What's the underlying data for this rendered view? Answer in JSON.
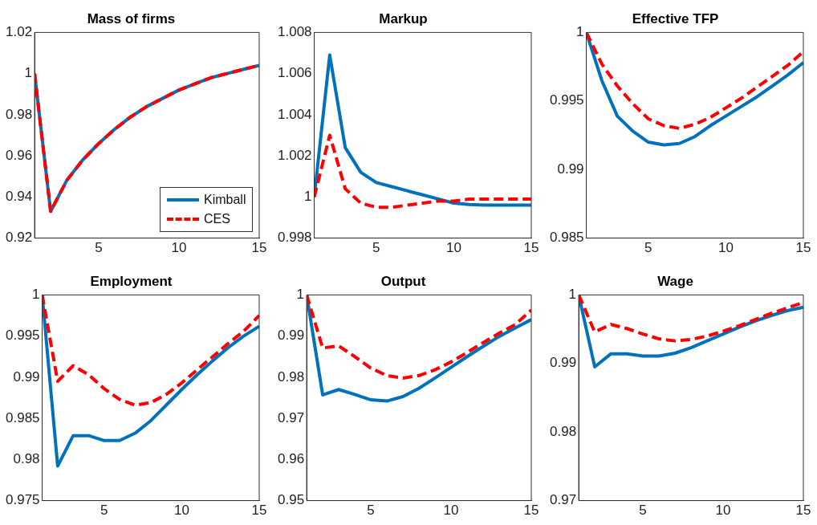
{
  "chart_data": [
    {
      "type": "line",
      "title": "Mass of firms",
      "x": [
        1,
        2,
        3,
        4,
        5,
        6,
        7,
        8,
        9,
        10,
        11,
        12,
        13,
        14,
        15
      ],
      "xlim": [
        1,
        15
      ],
      "xticks": [
        5,
        10,
        15
      ],
      "ylim": [
        0.92,
        1.02
      ],
      "yticks": [
        0.92,
        0.94,
        0.96,
        0.98,
        1,
        1.02
      ],
      "grid": false,
      "legend": "bottom right",
      "series": [
        {
          "name": "Kimball",
          "color": "#0072bd",
          "line_style": "solid",
          "values": [
            1,
            0.933,
            0.948,
            0.958,
            0.966,
            0.973,
            0.979,
            0.984,
            0.988,
            0.992,
            0.995,
            0.998,
            1.0,
            1.002,
            1.004
          ]
        },
        {
          "name": "CES",
          "color": "#ff0000",
          "line_style": "dashed",
          "values": [
            1,
            0.933,
            0.948,
            0.958,
            0.966,
            0.973,
            0.979,
            0.984,
            0.988,
            0.992,
            0.995,
            0.998,
            1.0,
            1.002,
            1.004
          ]
        }
      ]
    },
    {
      "type": "line",
      "title": "Markup",
      "x": [
        1,
        2,
        3,
        4,
        5,
        6,
        7,
        8,
        9,
        10,
        11,
        12,
        13,
        14,
        15
      ],
      "xlim": [
        1,
        15
      ],
      "xticks": [
        5,
        10,
        15
      ],
      "ylim": [
        0.998,
        1.008
      ],
      "yticks": [
        0.998,
        1,
        1.002,
        1.004,
        1.006,
        1.008
      ],
      "grid": false,
      "legend": false,
      "series": [
        {
          "color": "#0072bd",
          "line_style": "solid",
          "values": [
            1,
            1.0069,
            1.0024,
            1.0012,
            1.0007,
            1.0005,
            1.0003,
            1.0001,
            0.9999,
            0.9997,
            0.99963,
            0.9996,
            0.9996,
            0.9996,
            0.9996
          ]
        },
        {
          "color": "#ff0000",
          "line_style": "dashed",
          "values": [
            1,
            1.003,
            1.0004,
            0.9997,
            0.9995,
            0.9995,
            0.9996,
            0.9997,
            0.9998,
            0.9998,
            0.9999,
            0.9999,
            0.9999,
            0.9999,
            0.9999
          ]
        }
      ]
    },
    {
      "type": "line",
      "title": "Effective TFP",
      "x": [
        1,
        2,
        3,
        4,
        5,
        6,
        7,
        8,
        9,
        10,
        11,
        12,
        13,
        14,
        15
      ],
      "xlim": [
        1,
        15
      ],
      "xticks": [
        5,
        10,
        15
      ],
      "ylim": [
        0.985,
        1
      ],
      "yticks": [
        0.985,
        0.99,
        0.995,
        1
      ],
      "grid": false,
      "legend": false,
      "series": [
        {
          "color": "#0072bd",
          "line_style": "solid",
          "values": [
            1,
            0.9965,
            0.9939,
            0.9928,
            0.992,
            0.9918,
            0.9919,
            0.9924,
            0.9932,
            0.9939,
            0.9946,
            0.9953,
            0.9961,
            0.9969,
            0.9978
          ]
        },
        {
          "color": "#ff0000",
          "line_style": "dashed",
          "values": [
            1,
            0.9977,
            0.9961,
            0.9948,
            0.9937,
            0.9932,
            0.993,
            0.9933,
            0.9938,
            0.9945,
            0.9952,
            0.996,
            0.9968,
            0.9976,
            0.9986
          ]
        }
      ]
    },
    {
      "type": "line",
      "title": "Employment",
      "x": [
        1,
        2,
        3,
        4,
        5,
        6,
        7,
        8,
        9,
        10,
        11,
        12,
        13,
        14,
        15
      ],
      "xlim": [
        1,
        15
      ],
      "xticks": [
        5,
        10,
        15
      ],
      "ylim": [
        0.975,
        1
      ],
      "yticks": [
        0.975,
        0.98,
        0.985,
        0.99,
        0.995,
        1
      ],
      "grid": false,
      "legend": false,
      "series": [
        {
          "color": "#0072bd",
          "line_style": "solid",
          "values": [
            1,
            0.9792,
            0.9829,
            0.9829,
            0.9823,
            0.9823,
            0.9832,
            0.9847,
            0.9866,
            0.9885,
            0.9903,
            0.992,
            0.9936,
            0.995,
            0.9962
          ]
        },
        {
          "color": "#ff0000",
          "line_style": "dashed",
          "values": [
            1,
            0.9895,
            0.9914,
            0.9903,
            0.9886,
            0.9873,
            0.9866,
            0.9869,
            0.9879,
            0.9893,
            0.9909,
            0.9925,
            0.9941,
            0.9956,
            0.9975
          ]
        }
      ]
    },
    {
      "type": "line",
      "title": "Output",
      "x": [
        1,
        2,
        3,
        4,
        5,
        6,
        7,
        8,
        9,
        10,
        11,
        12,
        13,
        14,
        15
      ],
      "xlim": [
        1,
        15
      ],
      "xticks": [
        5,
        10,
        15
      ],
      "ylim": [
        0.95,
        1
      ],
      "yticks": [
        0.95,
        0.96,
        0.97,
        0.98,
        0.99,
        1
      ],
      "grid": false,
      "legend": false,
      "series": [
        {
          "color": "#0072bd",
          "line_style": "solid",
          "values": [
            1,
            0.9757,
            0.977,
            0.9758,
            0.9745,
            0.9742,
            0.9753,
            0.9773,
            0.9798,
            0.9824,
            0.985,
            0.9875,
            0.9899,
            0.992,
            0.994
          ]
        },
        {
          "color": "#ff0000",
          "line_style": "dashed",
          "values": [
            1,
            0.9871,
            0.9876,
            0.985,
            0.9822,
            0.9804,
            0.9798,
            0.9804,
            0.9818,
            0.9837,
            0.986,
            0.9884,
            0.9907,
            0.9928,
            0.9963
          ]
        }
      ]
    },
    {
      "type": "line",
      "title": "Wage",
      "x": [
        1,
        2,
        3,
        4,
        5,
        6,
        7,
        8,
        9,
        10,
        11,
        12,
        13,
        14,
        15
      ],
      "xlim": [
        1,
        15
      ],
      "xticks": [
        5,
        10,
        15
      ],
      "ylim": [
        0.97,
        1
      ],
      "yticks": [
        0.97,
        0.98,
        0.99,
        1
      ],
      "grid": false,
      "legend": false,
      "series": [
        {
          "color": "#0072bd",
          "line_style": "solid",
          "values": [
            1,
            0.9895,
            0.9914,
            0.9914,
            0.9911,
            0.9911,
            0.9915,
            0.9923,
            0.9933,
            0.9943,
            0.9953,
            0.9962,
            0.997,
            0.9977,
            0.9982
          ]
        },
        {
          "color": "#ff0000",
          "line_style": "dashed",
          "values": [
            1,
            0.9946,
            0.9957,
            0.9951,
            0.9943,
            0.9936,
            0.9933,
            0.9935,
            0.994,
            0.9947,
            0.9955,
            0.9964,
            0.9973,
            0.9981,
            0.9989
          ]
        }
      ]
    }
  ]
}
